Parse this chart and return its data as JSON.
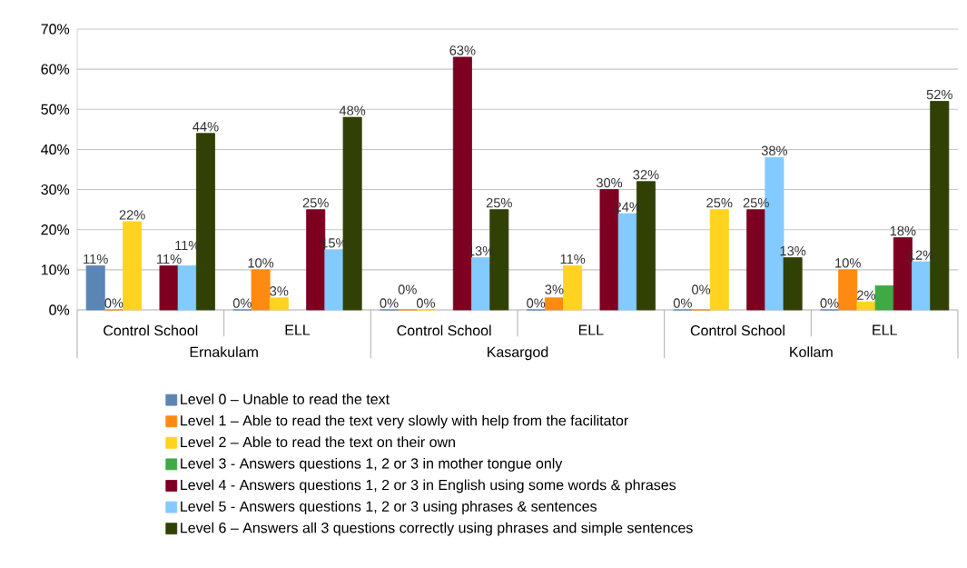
{
  "chart_data": {
    "type": "bar",
    "categories": [
      "Control School",
      "ELL",
      "Control School",
      "ELL",
      "Control School",
      "ELL"
    ],
    "annotations": [
      "Ernakulam",
      "Kasargod",
      "Kollam"
    ],
    "ylim": [
      0,
      70
    ],
    "yticks": [
      {
        "value": 0,
        "label": "0%"
      },
      {
        "value": 10,
        "label": "10%"
      },
      {
        "value": 20,
        "label": "20%"
      },
      {
        "value": 30,
        "label": "30%"
      },
      {
        "value": 40,
        "label": "40%"
      },
      {
        "value": 50,
        "label": "50%"
      },
      {
        "value": 60,
        "label": "60%"
      },
      {
        "value": 70,
        "label": "70%"
      }
    ],
    "grid": "y",
    "legend": "bottom",
    "series": [
      {
        "name": "Level 0 – Unable to read the text",
        "color": "#5b85b5",
        "values": [
          11,
          0,
          0,
          0,
          0,
          0
        ],
        "value_labels": [
          "11%",
          "0%",
          "0%",
          "0%",
          "0%",
          "0%"
        ]
      },
      {
        "name": "Level 1 – Able to read the text very slowly with help from the facilitator",
        "color": "#ff8a11",
        "values": [
          0,
          10,
          0,
          3,
          0,
          10
        ],
        "value_labels": [
          "0%",
          "10%",
          "0%",
          "3%",
          "0%",
          "10%"
        ]
      },
      {
        "name": "Level 2 – Able to read the text on their own",
        "color": "#ffd320",
        "values": [
          22,
          3,
          0,
          11,
          25,
          2
        ],
        "value_labels": [
          "22%",
          "3%",
          "0%",
          "11%",
          "25%",
          "2%"
        ]
      },
      {
        "name": "Level 3 - Answers questions 1, 2 or 3 in mother tongue only",
        "color": "#3faa45",
        "values": [
          null,
          null,
          null,
          null,
          null,
          6
        ],
        "value_labels": [
          null,
          null,
          null,
          null,
          null,
          null
        ]
      },
      {
        "name": "Level 4 - Answers questions 1, 2 or 3 in English using some words & phrases",
        "color": "#7e0021",
        "values": [
          11,
          25,
          63,
          30,
          25,
          18
        ],
        "value_labels": [
          "11%",
          "25%",
          "63%",
          "30%",
          "25%",
          "18%"
        ]
      },
      {
        "name": "Level 5 - Answers questions 1, 2 or 3 using phrases & sentences",
        "color": "#83caff",
        "values": [
          11,
          15,
          13,
          24,
          38,
          12
        ],
        "value_labels": [
          "11%",
          "15%",
          "13%",
          "24%",
          "38%",
          "12%"
        ]
      },
      {
        "name": "Level 6 – Answers all 3 questions correctly using phrases and simple sentences",
        "color": "#314004",
        "values": [
          44,
          48,
          25,
          32,
          13,
          52
        ],
        "value_labels": [
          "44%",
          "48%",
          "25%",
          "32%",
          "13%",
          "52%"
        ]
      }
    ]
  }
}
